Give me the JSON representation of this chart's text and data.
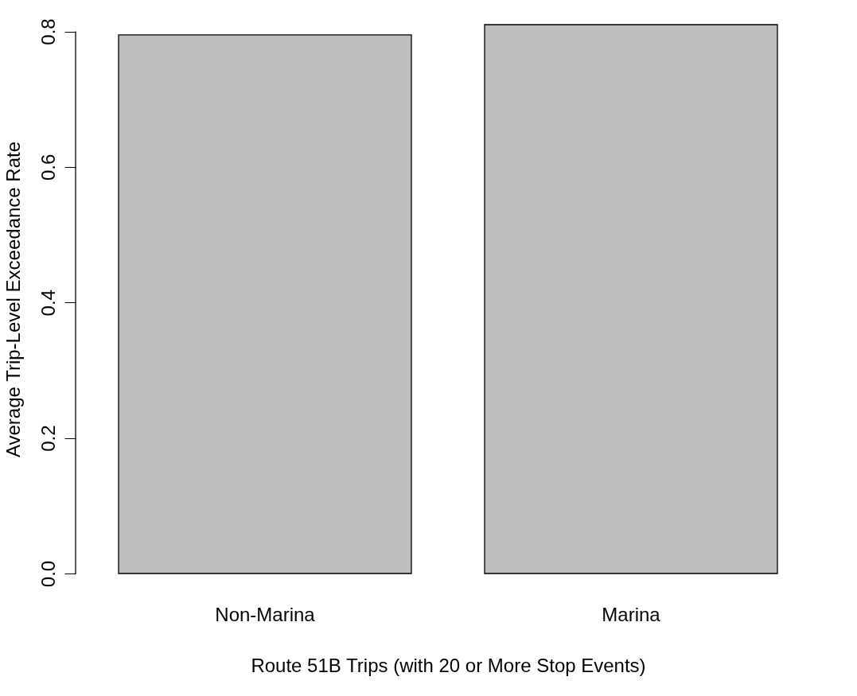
{
  "chart_data": {
    "type": "bar",
    "xlabel": "Route 51B Trips (with 20 or More Stop Events)",
    "ylabel": "Average Trip-Level Exceedance Rate",
    "categories": [
      "Non-Marina",
      "Marina"
    ],
    "values": [
      0.795,
      0.81
    ],
    "color": "#bebebe",
    "ylim": [
      0,
      0.81
    ],
    "yticks": [
      {
        "value": 0,
        "label": "0.0"
      },
      {
        "value": 0.2,
        "label": "0.2"
      },
      {
        "value": 0.4,
        "label": "0.4"
      },
      {
        "value": 0.6,
        "label": "0.6"
      },
      {
        "value": 0.8,
        "label": "0.8"
      }
    ],
    "grid": false
  }
}
